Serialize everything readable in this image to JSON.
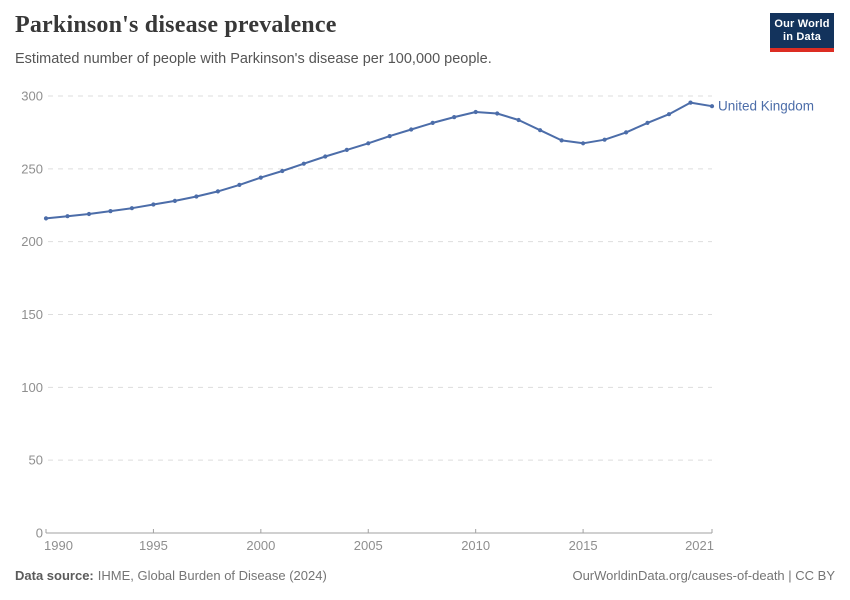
{
  "header": {
    "title": "Parkinson's disease prevalence",
    "subtitle": "Estimated number of people with Parkinson's disease per 100,000 people."
  },
  "logo": {
    "line1": "Our World",
    "line2": "in Data"
  },
  "chart_data": {
    "type": "line",
    "title": "Parkinson's disease prevalence",
    "subtitle": "Estimated number of people with Parkinson's disease per 100,000 people.",
    "x": [
      1990,
      1991,
      1992,
      1993,
      1994,
      1995,
      1996,
      1997,
      1998,
      1999,
      2000,
      2001,
      2002,
      2003,
      2004,
      2005,
      2006,
      2007,
      2008,
      2009,
      2010,
      2011,
      2012,
      2013,
      2014,
      2015,
      2016,
      2017,
      2018,
      2019,
      2020,
      2021
    ],
    "series": [
      {
        "name": "United Kingdom",
        "values": [
          216,
          217.5,
          219,
          221,
          223,
          225.5,
          228,
          231,
          234.5,
          239,
          244,
          248.5,
          253.5,
          258.5,
          263,
          267.5,
          272.5,
          277,
          281.5,
          285.5,
          289,
          288,
          283.5,
          276.5,
          269.5,
          267.5,
          270,
          275,
          281.5,
          287.5,
          295.5,
          293
        ]
      }
    ],
    "xlabel": "",
    "ylabel": "",
    "ylim": [
      0,
      300
    ],
    "yticks": [
      0,
      50,
      100,
      150,
      200,
      250,
      300
    ],
    "xticks": [
      1990,
      1995,
      2000,
      2005,
      2010,
      2015,
      2021
    ],
    "grid": "horizontal-dashed",
    "legend_position": "line-end-label"
  },
  "colors": {
    "line": "#4c6da9",
    "grid": "#dddddd",
    "axis": "#a1a1a1",
    "tick_label": "#8f8f8f",
    "title": "#383838",
    "subtitle": "#555555",
    "footer": "#757575",
    "logo_bg": "#13335c",
    "logo_red": "#dc2d23",
    "logo_text": "#ffffff"
  },
  "footer": {
    "datasource_label": "Data source:",
    "datasource_text": "IHME, Global Burden of Disease (2024)",
    "credit": "OurWorldinData.org/causes-of-death | CC BY"
  }
}
